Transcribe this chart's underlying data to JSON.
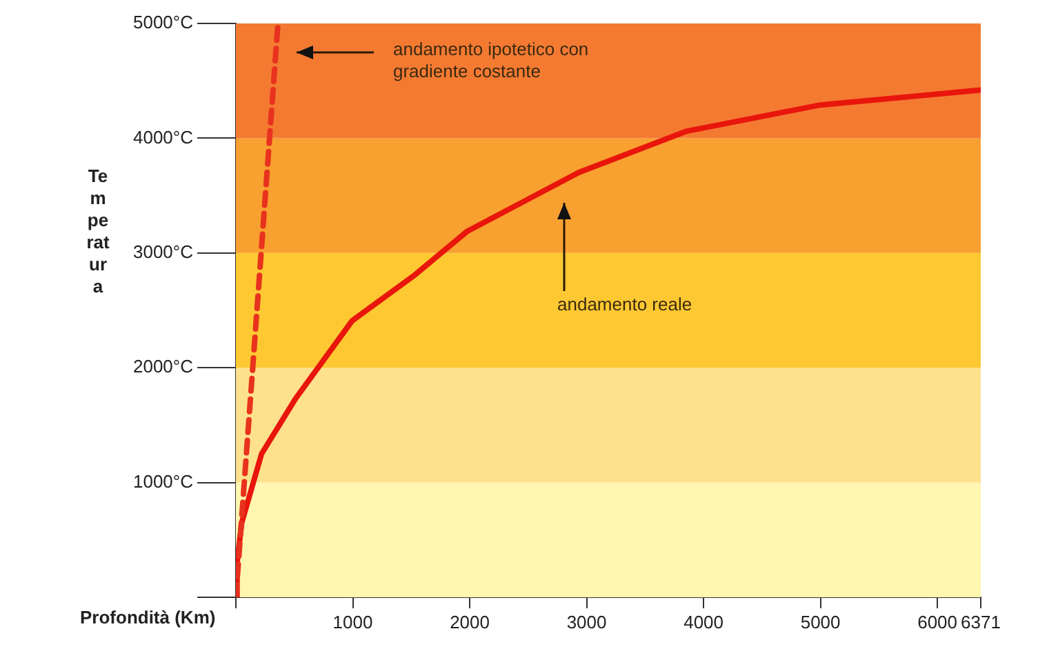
{
  "chart_data": {
    "type": "line",
    "xlabel": "Profondità (Km)",
    "ylabel": "Temperatura",
    "xlim": [
      0,
      6371
    ],
    "xticks": [
      {
        "value": 0,
        "label": null
      },
      1000,
      2000,
      3000,
      4000,
      5000,
      6000,
      6371
    ],
    "ylim": [
      0,
      5000
    ],
    "yticks": [
      {
        "value": 0,
        "label": null
      },
      {
        "value": 1000,
        "label": "1000°C"
      },
      {
        "value": 2000,
        "label": "2000°C"
      },
      {
        "value": 3000,
        "label": "3000°C"
      },
      {
        "value": 4000,
        "label": "4000°C"
      },
      {
        "value": 5000,
        "label": "5000°C"
      }
    ],
    "grid": false,
    "legend": false,
    "marker": "none",
    "bands": [
      {
        "axis": "y",
        "from": 0,
        "to": 1000,
        "color": "#fff6b0"
      },
      {
        "axis": "y",
        "from": 1000,
        "to": 2000,
        "color": "#fde18c"
      },
      {
        "axis": "y",
        "from": 2000,
        "to": 3000,
        "color": "#fdc832"
      },
      {
        "axis": "y",
        "from": 3000,
        "to": 4000,
        "color": "#f8a030"
      },
      {
        "axis": "y",
        "from": 4000,
        "to": 5000,
        "color": "#f47a32"
      }
    ],
    "series": [
      {
        "color": "#e8321e",
        "line_style": "dashed",
        "x": [
          0,
          360
        ],
        "values": [
          0,
          5000
        ]
      },
      {
        "color": "#e8160c",
        "line_style": "solid",
        "x": [
          0,
          10,
          50,
          220,
          510,
          995,
          1520,
          1980,
          2930,
          3850,
          5000,
          6371
        ],
        "values": [
          0,
          300,
          650,
          1250,
          1730,
          2410,
          2800,
          3190,
          3700,
          4060,
          4290,
          4420
        ]
      }
    ],
    "annotations": [
      "andamento ipotetico con gradiente costante",
      "andamento reale"
    ]
  }
}
